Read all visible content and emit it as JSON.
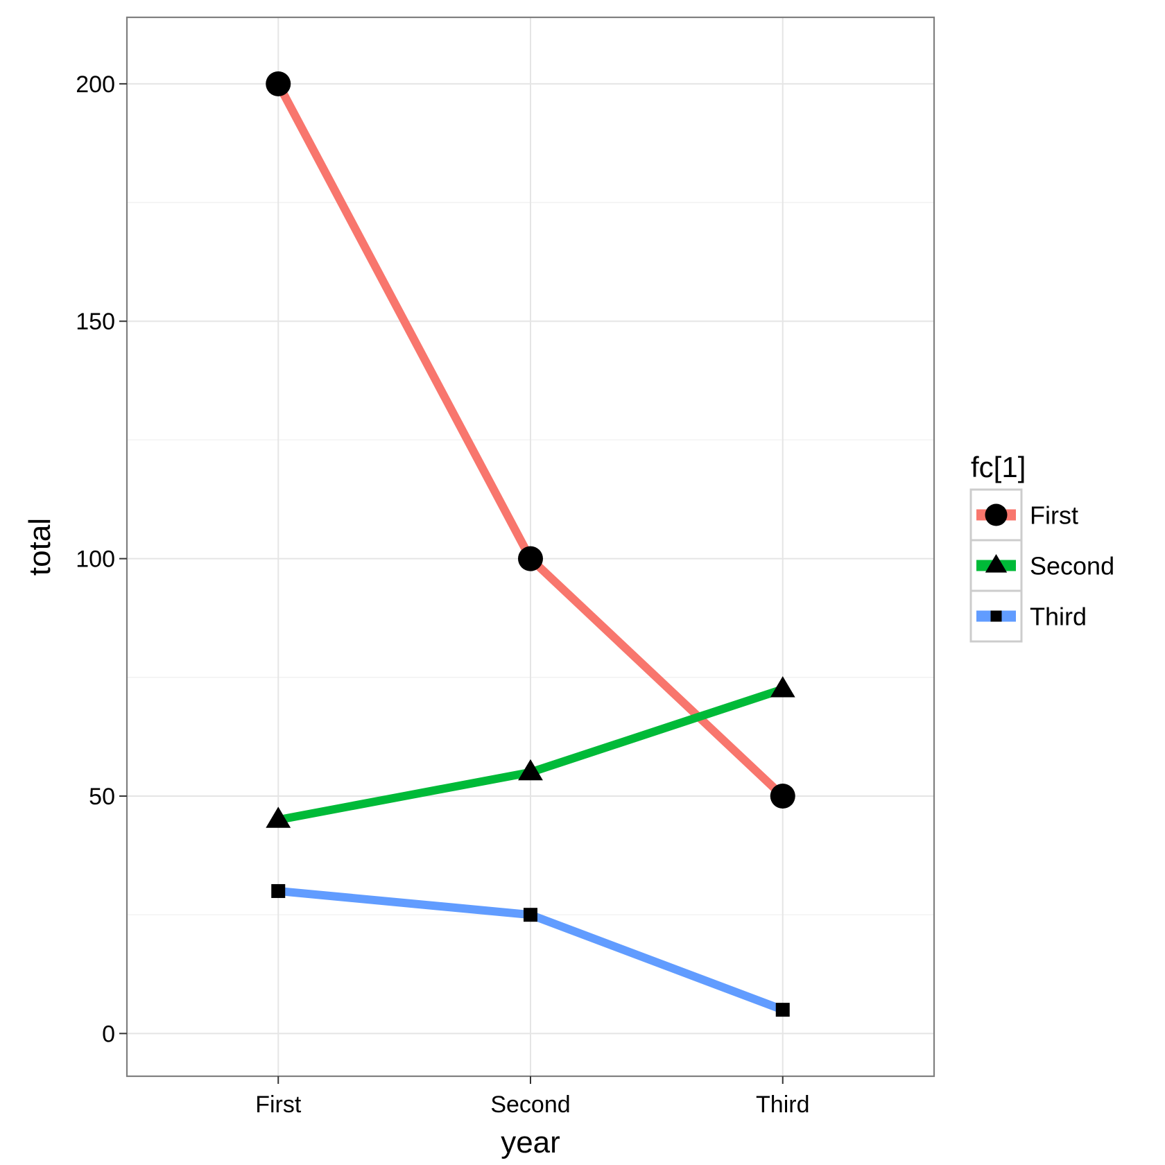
{
  "chart_data": {
    "type": "line",
    "categories": [
      "First",
      "Second",
      "Third"
    ],
    "xlabel": "year",
    "ylabel": "total",
    "ylim": [
      -9,
      214
    ],
    "yticks": [
      0,
      50,
      100,
      150,
      200
    ],
    "ytick_labels": [
      "0",
      "50",
      "100",
      "150",
      "200"
    ],
    "grid": true,
    "legend": {
      "title": "fc[1]",
      "position": "right"
    },
    "series": [
      {
        "name": "First",
        "values": [
          200,
          100,
          50
        ],
        "color": "#F8766D",
        "marker": "circle"
      },
      {
        "name": "Second",
        "values": [
          45,
          55,
          72.5
        ],
        "color": "#00BA38",
        "marker": "triangle"
      },
      {
        "name": "Third",
        "values": [
          30,
          25,
          5
        ],
        "color": "#619CFF",
        "marker": "square"
      }
    ]
  }
}
